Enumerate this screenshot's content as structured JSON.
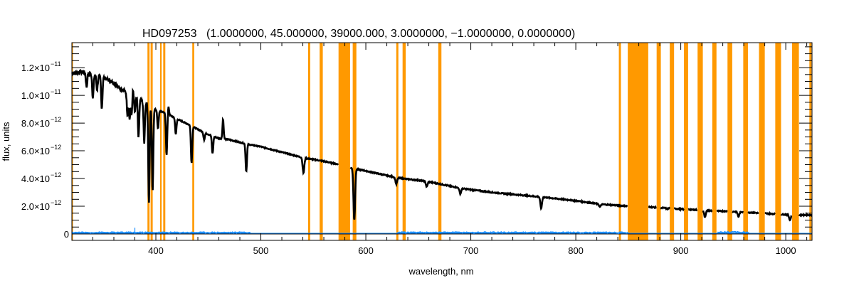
{
  "chart_data": {
    "type": "line",
    "title_star": "HD097253",
    "title_params": "(1.0000000, 45.000000, 39000.000, 3.0000000, −1.0000000, 0.0000000)",
    "xlabel": "wavelength, nm",
    "ylabel": "flux, units",
    "xlim": [
      320,
      1025
    ],
    "ylim": [
      -4.6e-13,
      1.38e-11
    ],
    "x_ticks": [
      {
        "value": 400,
        "label": "400"
      },
      {
        "value": 500,
        "label": "500"
      },
      {
        "value": 600,
        "label": "600"
      },
      {
        "value": 700,
        "label": "700"
      },
      {
        "value": 800,
        "label": "800"
      },
      {
        "value": 900,
        "label": "900"
      },
      {
        "value": 1000,
        "label": "1000"
      }
    ],
    "y_ticks": [
      {
        "value": 0,
        "mantissa": "0",
        "exp": ""
      },
      {
        "value": 2e-12,
        "mantissa": "2.0×10",
        "exp": "−12"
      },
      {
        "value": 4e-12,
        "mantissa": "4.0×10",
        "exp": "−12"
      },
      {
        "value": 6e-12,
        "mantissa": "6.0×10",
        "exp": "−12"
      },
      {
        "value": 8e-12,
        "mantissa": "8.0×10",
        "exp": "−12"
      },
      {
        "value": 1e-11,
        "mantissa": "1.0×10",
        "exp": "−11"
      },
      {
        "value": 1.2e-11,
        "mantissa": "1.2×10",
        "exp": "−11"
      }
    ],
    "colors": {
      "flux": "#000000",
      "error": "#1e90ff",
      "mask": "#ff9900",
      "zero_line": "#000000"
    },
    "series": [
      {
        "name": "flux",
        "unit_scale": 1e-12,
        "continuum": [
          [
            320,
            11.6
          ],
          [
            330,
            11.7
          ],
          [
            350,
            11.3
          ],
          [
            362,
            10.8
          ],
          [
            370,
            10.3
          ],
          [
            380,
            9.9
          ],
          [
            392,
            9.4
          ],
          [
            400,
            9.0
          ],
          [
            410,
            8.7
          ],
          [
            420,
            8.3
          ],
          [
            434,
            7.8
          ],
          [
            446,
            7.3
          ],
          [
            460,
            6.9
          ],
          [
            470,
            6.8
          ],
          [
            488,
            6.46
          ],
          [
            500,
            6.3
          ],
          [
            520,
            5.9
          ],
          [
            540,
            5.5
          ],
          [
            560,
            5.25
          ],
          [
            575,
            5.0
          ],
          [
            584,
            4.8
          ],
          [
            600,
            4.55
          ],
          [
            630,
            4.05
          ],
          [
            658,
            3.8
          ],
          [
            690,
            3.3
          ],
          [
            720,
            3.0
          ],
          [
            767,
            2.67
          ],
          [
            800,
            2.4
          ],
          [
            823,
            2.15
          ],
          [
            851,
            2.0
          ],
          [
            869,
            1.95
          ],
          [
            900,
            1.8
          ],
          [
            923,
            1.7
          ],
          [
            955,
            1.6
          ],
          [
            1004,
            1.38
          ],
          [
            1025,
            1.36
          ]
        ],
        "absorption_lines": [
          [
            334,
            10.6
          ],
          [
            340,
            9.8
          ],
          [
            344,
            10.4
          ],
          [
            348.5,
            9.1
          ],
          [
            373,
            8.6
          ],
          [
            375,
            8.3
          ],
          [
            377,
            8.5
          ],
          [
            380,
            8.8
          ],
          [
            383.5,
            7.0
          ],
          [
            388.9,
            6.6
          ],
          [
            393.4,
            2.25
          ],
          [
            396.9,
            3.0
          ],
          [
            402,
            7.6
          ],
          [
            410.2,
            5.7
          ],
          [
            419,
            7.2
          ],
          [
            434.0,
            5.1
          ],
          [
            446,
            6.8
          ],
          [
            454,
            5.8
          ],
          [
            486.1,
            4.5
          ],
          [
            540.6,
            4.4
          ],
          [
            589.0,
            1.0
          ],
          [
            629,
            3.6
          ],
          [
            658,
            3.4
          ],
          [
            690,
            2.9
          ],
          [
            767,
            1.85
          ],
          [
            823,
            1.95
          ],
          [
            887,
            1.8
          ],
          [
            923,
            1.23
          ],
          [
            955,
            1.25
          ],
          [
            1004,
            1.0
          ]
        ],
        "emission_spikes": [
          [
            378,
            10.6
          ],
          [
            412,
            9.2
          ],
          [
            464,
            8.3
          ]
        ],
        "gaps": [
          [
            574,
            585
          ],
          [
            849.5,
            869
          ],
          [
            877,
            881
          ],
          [
            889.5,
            893.6
          ],
          [
            903,
            907
          ],
          [
            916,
            921
          ],
          [
            930,
            934
          ],
          [
            944.5,
            949
          ],
          [
            959.5,
            964
          ],
          [
            974.5,
            980
          ],
          [
            990,
            995.5
          ],
          [
            1006,
            1012.5
          ]
        ]
      },
      {
        "name": "error",
        "unit_scale": 1e-12,
        "segments": [
          [
            320,
            490,
            0.1
          ],
          [
            630,
            850,
            0.1
          ],
          [
            935,
            965,
            0.12
          ]
        ],
        "baseline": 0.05,
        "spikes": [
          [
            380,
            0.45
          ]
        ]
      }
    ],
    "masked_bands_nm": [
      [
        319.5,
        321
      ],
      [
        392,
        394
      ],
      [
        395,
        397
      ],
      [
        404,
        405.5
      ],
      [
        407,
        409
      ],
      [
        434.7,
        436.5
      ],
      [
        545,
        547
      ],
      [
        556,
        559
      ],
      [
        574,
        585
      ],
      [
        587.5,
        591
      ],
      [
        629,
        631
      ],
      [
        635,
        638
      ],
      [
        669,
        672
      ],
      [
        841,
        843
      ],
      [
        849.5,
        869
      ],
      [
        877,
        881
      ],
      [
        889.5,
        893.6
      ],
      [
        903,
        907
      ],
      [
        916,
        921
      ],
      [
        930,
        934
      ],
      [
        944.5,
        949
      ],
      [
        959.5,
        964
      ],
      [
        974.5,
        980
      ],
      [
        990,
        995.5
      ],
      [
        1006,
        1012.5
      ],
      [
        1022.5,
        1024.5
      ]
    ],
    "grid": false,
    "legend": "none"
  }
}
